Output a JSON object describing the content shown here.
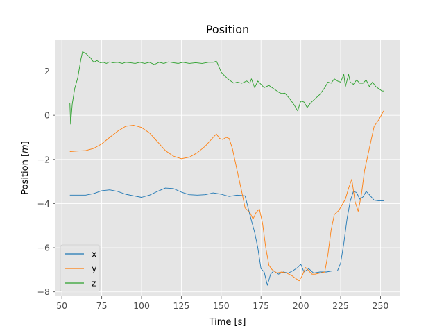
{
  "chart_data": {
    "type": "line",
    "title": "Position",
    "xlabel": "Time [s]",
    "ylabel_prefix": "Position [",
    "ylabel_unit": "m",
    "ylabel_suffix": "]",
    "xlim": [
      46,
      262
    ],
    "ylim": [
      -8.2,
      3.4
    ],
    "xticks": [
      50,
      75,
      100,
      125,
      150,
      175,
      200,
      225,
      250
    ],
    "yticks": [
      2,
      0,
      -2,
      -4,
      -6,
      -8
    ],
    "ytick_labels": [
      "2",
      "0",
      "−2",
      "−4",
      "−6",
      "−8"
    ],
    "grid": true,
    "legend_position": "lower-left",
    "background": "#e5e5e5",
    "series": [
      {
        "name": "x",
        "color": "#1f77b4",
        "points": [
          [
            55,
            -3.62
          ],
          [
            60,
            -3.62
          ],
          [
            65,
            -3.62
          ],
          [
            70,
            -3.55
          ],
          [
            75,
            -3.42
          ],
          [
            80,
            -3.38
          ],
          [
            85,
            -3.45
          ],
          [
            90,
            -3.58
          ],
          [
            95,
            -3.65
          ],
          [
            100,
            -3.72
          ],
          [
            105,
            -3.62
          ],
          [
            110,
            -3.45
          ],
          [
            115,
            -3.3
          ],
          [
            120,
            -3.32
          ],
          [
            125,
            -3.48
          ],
          [
            130,
            -3.6
          ],
          [
            135,
            -3.62
          ],
          [
            140,
            -3.6
          ],
          [
            145,
            -3.52
          ],
          [
            150,
            -3.58
          ],
          [
            155,
            -3.68
          ],
          [
            160,
            -3.62
          ],
          [
            165,
            -3.65
          ],
          [
            168,
            -4.5
          ],
          [
            171,
            -5.3
          ],
          [
            173,
            -6.0
          ],
          [
            175,
            -6.95
          ],
          [
            177,
            -7.1
          ],
          [
            179,
            -7.7
          ],
          [
            181,
            -7.2
          ],
          [
            183,
            -7.05
          ],
          [
            186,
            -7.2
          ],
          [
            189,
            -7.1
          ],
          [
            192,
            -7.15
          ],
          [
            195,
            -7.05
          ],
          [
            198,
            -6.9
          ],
          [
            200,
            -6.75
          ],
          [
            202,
            -7.1
          ],
          [
            205,
            -6.95
          ],
          [
            208,
            -7.15
          ],
          [
            212,
            -7.1
          ],
          [
            216,
            -7.1
          ],
          [
            220,
            -7.05
          ],
          [
            223,
            -7.05
          ],
          [
            225,
            -6.7
          ],
          [
            227,
            -5.8
          ],
          [
            229,
            -4.7
          ],
          [
            231,
            -3.9
          ],
          [
            233,
            -3.45
          ],
          [
            235,
            -3.5
          ],
          [
            237,
            -3.8
          ],
          [
            239,
            -3.7
          ],
          [
            241,
            -3.45
          ],
          [
            243,
            -3.6
          ],
          [
            246,
            -3.85
          ],
          [
            249,
            -3.88
          ],
          [
            252,
            -3.88
          ]
        ]
      },
      {
        "name": "y",
        "color": "#ff7f0e",
        "points": [
          [
            55,
            -1.65
          ],
          [
            60,
            -1.62
          ],
          [
            65,
            -1.6
          ],
          [
            70,
            -1.5
          ],
          [
            75,
            -1.3
          ],
          [
            80,
            -1.0
          ],
          [
            85,
            -0.72
          ],
          [
            90,
            -0.5
          ],
          [
            95,
            -0.45
          ],
          [
            100,
            -0.55
          ],
          [
            105,
            -0.8
          ],
          [
            110,
            -1.2
          ],
          [
            115,
            -1.6
          ],
          [
            120,
            -1.85
          ],
          [
            125,
            -1.97
          ],
          [
            130,
            -1.9
          ],
          [
            135,
            -1.7
          ],
          [
            140,
            -1.4
          ],
          [
            145,
            -1.0
          ],
          [
            147,
            -0.85
          ],
          [
            149,
            -1.05
          ],
          [
            151,
            -1.1
          ],
          [
            153,
            -1.0
          ],
          [
            155,
            -1.05
          ],
          [
            157,
            -1.5
          ],
          [
            160,
            -2.5
          ],
          [
            163,
            -3.5
          ],
          [
            165,
            -4.2
          ],
          [
            168,
            -4.4
          ],
          [
            170,
            -4.7
          ],
          [
            172,
            -4.4
          ],
          [
            174,
            -4.25
          ],
          [
            176,
            -4.9
          ],
          [
            178,
            -6.0
          ],
          [
            180,
            -6.8
          ],
          [
            182,
            -7.0
          ],
          [
            185,
            -7.15
          ],
          [
            188,
            -7.1
          ],
          [
            191,
            -7.15
          ],
          [
            194,
            -7.25
          ],
          [
            197,
            -7.4
          ],
          [
            199,
            -7.5
          ],
          [
            201,
            -7.25
          ],
          [
            203,
            -6.9
          ],
          [
            205,
            -7.05
          ],
          [
            207,
            -7.2
          ],
          [
            209,
            -7.2
          ],
          [
            212,
            -7.15
          ],
          [
            215,
            -7.1
          ],
          [
            217,
            -6.3
          ],
          [
            219,
            -5.2
          ],
          [
            221,
            -4.5
          ],
          [
            224,
            -4.3
          ],
          [
            226,
            -4.05
          ],
          [
            228,
            -3.8
          ],
          [
            230,
            -3.3
          ],
          [
            232,
            -2.9
          ],
          [
            234,
            -3.9
          ],
          [
            236,
            -4.35
          ],
          [
            238,
            -3.6
          ],
          [
            240,
            -2.5
          ],
          [
            243,
            -1.5
          ],
          [
            246,
            -0.5
          ],
          [
            249,
            -0.2
          ],
          [
            252,
            0.2
          ]
        ]
      },
      {
        "name": "z",
        "color": "#2ca02c",
        "points": [
          [
            55,
            0.55
          ],
          [
            55.5,
            -0.4
          ],
          [
            56.5,
            0.5
          ],
          [
            58,
            1.2
          ],
          [
            60,
            1.7
          ],
          [
            62,
            2.55
          ],
          [
            63,
            2.88
          ],
          [
            65,
            2.8
          ],
          [
            68,
            2.6
          ],
          [
            70,
            2.4
          ],
          [
            72,
            2.48
          ],
          [
            74,
            2.38
          ],
          [
            76,
            2.4
          ],
          [
            78,
            2.35
          ],
          [
            80,
            2.42
          ],
          [
            82,
            2.38
          ],
          [
            85,
            2.4
          ],
          [
            88,
            2.35
          ],
          [
            90,
            2.4
          ],
          [
            93,
            2.38
          ],
          [
            96,
            2.35
          ],
          [
            99,
            2.4
          ],
          [
            102,
            2.35
          ],
          [
            105,
            2.4
          ],
          [
            108,
            2.3
          ],
          [
            111,
            2.4
          ],
          [
            114,
            2.35
          ],
          [
            117,
            2.42
          ],
          [
            120,
            2.38
          ],
          [
            123,
            2.35
          ],
          [
            126,
            2.4
          ],
          [
            130,
            2.35
          ],
          [
            134,
            2.38
          ],
          [
            138,
            2.35
          ],
          [
            142,
            2.4
          ],
          [
            145,
            2.4
          ],
          [
            147,
            2.45
          ],
          [
            148,
            2.3
          ],
          [
            150,
            1.95
          ],
          [
            152,
            1.8
          ],
          [
            155,
            1.6
          ],
          [
            158,
            1.45
          ],
          [
            160,
            1.5
          ],
          [
            163,
            1.45
          ],
          [
            166,
            1.55
          ],
          [
            168,
            1.45
          ],
          [
            169,
            1.65
          ],
          [
            171,
            1.25
          ],
          [
            173,
            1.55
          ],
          [
            175,
            1.4
          ],
          [
            177,
            1.25
          ],
          [
            180,
            1.35
          ],
          [
            183,
            1.2
          ],
          [
            186,
            1.05
          ],
          [
            188,
            0.98
          ],
          [
            190,
            1.0
          ],
          [
            193,
            0.75
          ],
          [
            196,
            0.45
          ],
          [
            198,
            0.2
          ],
          [
            200,
            0.65
          ],
          [
            202,
            0.6
          ],
          [
            204,
            0.35
          ],
          [
            206,
            0.55
          ],
          [
            209,
            0.75
          ],
          [
            212,
            0.95
          ],
          [
            215,
            1.25
          ],
          [
            217,
            1.5
          ],
          [
            219,
            1.45
          ],
          [
            221,
            1.65
          ],
          [
            223,
            1.55
          ],
          [
            225,
            1.5
          ],
          [
            227,
            1.85
          ],
          [
            228,
            1.3
          ],
          [
            230,
            1.85
          ],
          [
            231,
            1.5
          ],
          [
            233,
            1.4
          ],
          [
            235,
            1.6
          ],
          [
            237,
            1.45
          ],
          [
            239,
            1.45
          ],
          [
            241,
            1.6
          ],
          [
            243,
            1.3
          ],
          [
            245,
            1.5
          ],
          [
            247,
            1.3
          ],
          [
            249,
            1.2
          ],
          [
            251,
            1.1
          ],
          [
            252,
            1.1
          ]
        ]
      }
    ]
  }
}
